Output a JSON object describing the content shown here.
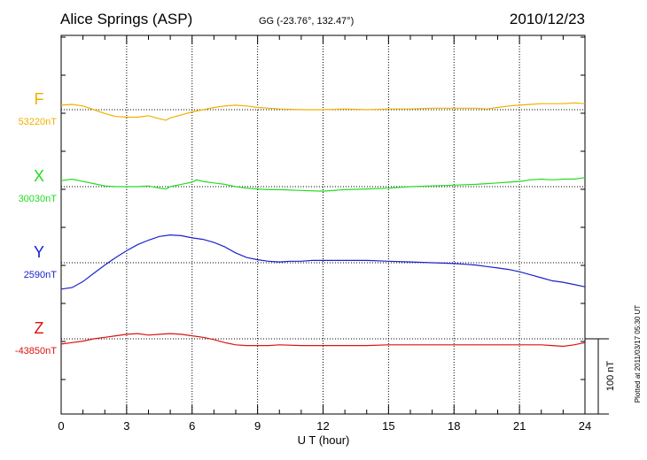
{
  "header": {
    "station": "Alice Springs (ASP)",
    "coords": "GG (-23.76°, 132.47°)",
    "date": "2010/12/23"
  },
  "footer": {
    "plotted": "Plotted at 2011/03/17 05:30 UT"
  },
  "chart_data": {
    "type": "line",
    "xlabel": "U T (hour)",
    "xlim": [
      0,
      24
    ],
    "xticks": [
      0,
      3,
      6,
      9,
      12,
      15,
      18,
      21,
      24
    ],
    "scale_label": "100 nT",
    "scale_nT": 100,
    "grid": true,
    "series": [
      {
        "name": "F",
        "baseline_label": "53220nT",
        "baseline": 53220,
        "color": "#f0b000",
        "x": [
          0,
          0.5,
          1,
          1.5,
          2,
          2.5,
          3,
          3.5,
          4,
          4.5,
          4.8,
          5,
          5.5,
          6,
          6.5,
          7,
          7.5,
          8,
          8.5,
          9,
          9.5,
          10,
          11,
          12,
          13,
          14,
          15,
          16,
          17,
          18,
          19,
          19.5,
          20,
          20.5,
          21,
          21.5,
          22,
          22.5,
          23,
          23.5,
          24
        ],
        "y": [
          53226,
          53227,
          53225,
          53220,
          53215,
          53211,
          53210,
          53210,
          53212,
          53208,
          53206,
          53209,
          53213,
          53217,
          53220,
          53223,
          53225,
          53226,
          53225,
          53223,
          53222,
          53221,
          53220,
          53220,
          53221,
          53220,
          53221,
          53221,
          53222,
          53222,
          53222,
          53221,
          53223,
          53225,
          53226,
          53227,
          53228,
          53228,
          53228,
          53229,
          53228
        ]
      },
      {
        "name": "X",
        "baseline_label": "30030nT",
        "baseline": 30030,
        "color": "#22dd22",
        "x": [
          0,
          0.5,
          1,
          1.5,
          2,
          2.5,
          3,
          3.5,
          4,
          4.5,
          4.8,
          5,
          5.5,
          6,
          6.2,
          6.5,
          7,
          7.5,
          8,
          8.5,
          9,
          9.5,
          10,
          11,
          12,
          13,
          14,
          15,
          16,
          17,
          18,
          19,
          19.5,
          20,
          20.5,
          21,
          21.5,
          22,
          22.5,
          23,
          23.5,
          24
        ],
        "y": [
          30038,
          30040,
          30037,
          30034,
          30031,
          30030,
          30030,
          30030,
          30031,
          30028,
          30027,
          30030,
          30033,
          30036,
          30039,
          30037,
          30035,
          30033,
          30030,
          30028,
          30027,
          30026,
          30026,
          30025,
          30024,
          30026,
          30027,
          30028,
          30030,
          30031,
          30032,
          30033,
          30034,
          30035,
          30036,
          30037,
          30039,
          30040,
          30039,
          30040,
          30040,
          30042
        ]
      },
      {
        "name": "Y",
        "baseline_label": "2590nT",
        "baseline": 2590,
        "color": "#1a22cc",
        "x": [
          0,
          0.5,
          1,
          1.5,
          2,
          2.5,
          3,
          3.5,
          4,
          4.5,
          5,
          5.5,
          6,
          6.5,
          7,
          7.5,
          8,
          8.5,
          9,
          9.5,
          10,
          10.5,
          11,
          11.5,
          12,
          13,
          14,
          15,
          16,
          17,
          18,
          18.5,
          19,
          19.5,
          20,
          20.5,
          21,
          21.5,
          22,
          22.5,
          23,
          23.5,
          24
        ],
        "y": [
          2555,
          2557,
          2565,
          2576,
          2587,
          2597,
          2606,
          2614,
          2620,
          2625,
          2627,
          2626,
          2623,
          2621,
          2617,
          2611,
          2603,
          2597,
          2594,
          2592,
          2591,
          2592,
          2592,
          2593,
          2593,
          2593,
          2593,
          2592,
          2591,
          2590,
          2589,
          2588,
          2587,
          2585,
          2583,
          2581,
          2578,
          2574,
          2570,
          2566,
          2564,
          2561,
          2558
        ]
      },
      {
        "name": "Z",
        "baseline_label": "-43850nT",
        "baseline": -43850,
        "color": "#dd1111",
        "x": [
          0,
          0.5,
          1,
          1.5,
          2,
          2.5,
          3,
          3.5,
          4,
          4.5,
          5,
          5.5,
          6,
          6.5,
          7,
          7.5,
          8,
          8.5,
          9,
          9.5,
          10,
          11,
          12,
          13,
          14,
          15,
          16,
          17,
          18,
          19,
          20,
          21,
          22,
          22.5,
          23,
          23.5,
          24
        ],
        "y": [
          -43857,
          -43855,
          -43853,
          -43850,
          -43848,
          -43846,
          -43844,
          -43843,
          -43845,
          -43844,
          -43843,
          -43844,
          -43846,
          -43848,
          -43851,
          -43855,
          -43858,
          -43859,
          -43859,
          -43859,
          -43858,
          -43859,
          -43859,
          -43859,
          -43859,
          -43858,
          -43858,
          -43858,
          -43858,
          -43858,
          -43858,
          -43858,
          -43858,
          -43859,
          -43860,
          -43858,
          -43855
        ]
      }
    ]
  }
}
